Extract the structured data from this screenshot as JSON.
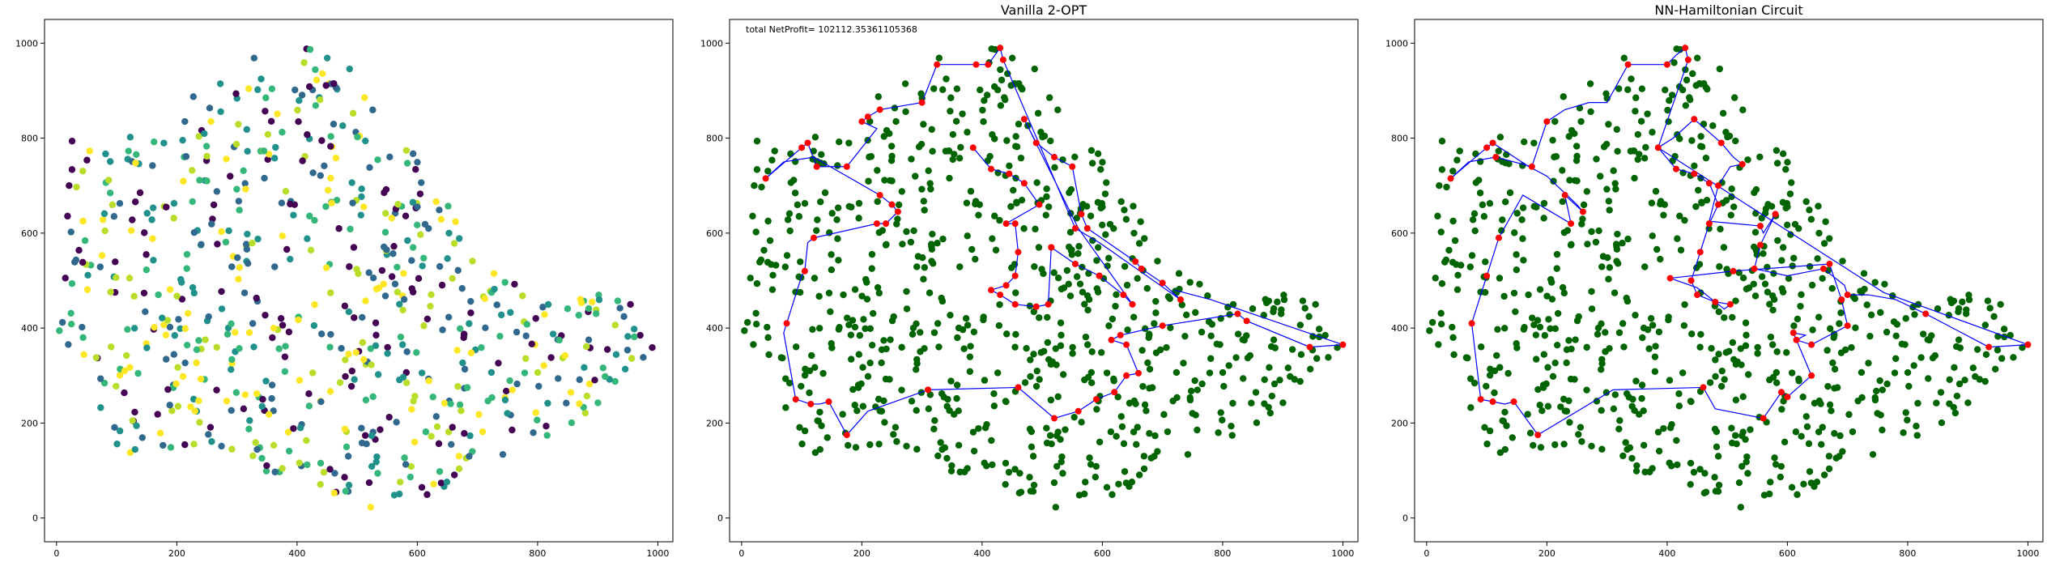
{
  "chart_data": [
    {
      "type": "scatter",
      "title": "",
      "xlim": [
        -20,
        1025
      ],
      "ylim": [
        -50,
        1050
      ],
      "xticks": [
        "0",
        "200",
        "400",
        "600",
        "800",
        "1000"
      ],
      "yticks": [
        "0",
        "200",
        "400",
        "600",
        "800",
        "1000"
      ],
      "grid": false,
      "points_note": "",
      "colormap": [
        "#440154",
        "#31688e",
        "#21918c",
        "#35b779",
        "#b8de29",
        "#fde725"
      ]
    },
    {
      "type": "scatter",
      "title": "Vanilla 2-OPT",
      "annotation": "total NetProfit= 102112.35361105368",
      "xlim": [
        -20,
        1025
      ],
      "ylim": [
        -50,
        1050
      ],
      "xticks": [
        "0",
        "200",
        "400",
        "600",
        "800",
        "1000"
      ],
      "yticks": [
        "0",
        "200",
        "400",
        "600",
        "800",
        "1000"
      ],
      "grid": false,
      "colors": {
        "points": "#006400",
        "route": "#0000ff",
        "visited": "#ff0000"
      },
      "route": [
        [
          385,
          780
        ],
        [
          415,
          735
        ],
        [
          445,
          725
        ],
        [
          470,
          705
        ],
        [
          495,
          660
        ],
        [
          440,
          620
        ],
        [
          455,
          620
        ],
        [
          460,
          560
        ],
        [
          455,
          510
        ],
        [
          440,
          490
        ],
        [
          415,
          480
        ],
        [
          430,
          470
        ],
        [
          455,
          450
        ],
        [
          490,
          445
        ],
        [
          510,
          450
        ],
        [
          515,
          570
        ],
        [
          555,
          535
        ],
        [
          595,
          510
        ],
        [
          635,
          470
        ],
        [
          650,
          450
        ],
        [
          560,
          610
        ],
        [
          470,
          840
        ],
        [
          490,
          790
        ],
        [
          520,
          760
        ],
        [
          550,
          740
        ],
        [
          565,
          640
        ],
        [
          575,
          610
        ],
        [
          655,
          540
        ],
        [
          665,
          525
        ],
        [
          700,
          495
        ],
        [
          730,
          460
        ],
        [
          595,
          580
        ],
        [
          555,
          610
        ],
        [
          435,
          965
        ],
        [
          430,
          990
        ],
        [
          410,
          955
        ],
        [
          390,
          955
        ],
        [
          325,
          955
        ],
        [
          300,
          875
        ],
        [
          230,
          860
        ],
        [
          210,
          845
        ],
        [
          200,
          835
        ],
        [
          225,
          820
        ],
        [
          175,
          740
        ],
        [
          125,
          740
        ],
        [
          110,
          790
        ],
        [
          100,
          780
        ],
        [
          40,
          715
        ],
        [
          70,
          750
        ],
        [
          120,
          760
        ],
        [
          230,
          680
        ],
        [
          250,
          660
        ],
        [
          260,
          645
        ],
        [
          240,
          620
        ],
        [
          225,
          620
        ],
        [
          120,
          590
        ],
        [
          110,
          580
        ],
        [
          105,
          520
        ],
        [
          100,
          510
        ],
        [
          75,
          410
        ],
        [
          70,
          390
        ],
        [
          90,
          250
        ],
        [
          115,
          240
        ],
        [
          130,
          240
        ],
        [
          145,
          245
        ],
        [
          175,
          175
        ],
        [
          210,
          225
        ],
        [
          310,
          270
        ],
        [
          460,
          275
        ],
        [
          520,
          210
        ],
        [
          560,
          225
        ],
        [
          590,
          250
        ],
        [
          620,
          265
        ],
        [
          640,
          300
        ],
        [
          660,
          305
        ],
        [
          640,
          365
        ],
        [
          615,
          375
        ],
        [
          630,
          385
        ],
        [
          700,
          405
        ],
        [
          825,
          430
        ],
        [
          840,
          415
        ],
        [
          945,
          360
        ],
        [
          1000,
          365
        ],
        [
          780,
          460
        ],
        [
          720,
          480
        ]
      ],
      "visited_points": [
        [
          385,
          780
        ],
        [
          415,
          735
        ],
        [
          445,
          725
        ],
        [
          470,
          705
        ],
        [
          495,
          660
        ],
        [
          440,
          620
        ],
        [
          455,
          620
        ],
        [
          460,
          560
        ],
        [
          455,
          510
        ],
        [
          440,
          490
        ],
        [
          415,
          480
        ],
        [
          430,
          470
        ],
        [
          455,
          450
        ],
        [
          490,
          445
        ],
        [
          510,
          450
        ],
        [
          515,
          570
        ],
        [
          555,
          535
        ],
        [
          595,
          510
        ],
        [
          635,
          470
        ],
        [
          650,
          450
        ],
        [
          470,
          840
        ],
        [
          490,
          790
        ],
        [
          520,
          760
        ],
        [
          550,
          740
        ],
        [
          565,
          640
        ],
        [
          575,
          610
        ],
        [
          655,
          540
        ],
        [
          665,
          525
        ],
        [
          700,
          495
        ],
        [
          730,
          460
        ],
        [
          555,
          610
        ],
        [
          435,
          965
        ],
        [
          430,
          990
        ],
        [
          410,
          955
        ],
        [
          390,
          955
        ],
        [
          325,
          955
        ],
        [
          300,
          875
        ],
        [
          230,
          860
        ],
        [
          210,
          845
        ],
        [
          200,
          835
        ],
        [
          175,
          740
        ],
        [
          125,
          740
        ],
        [
          110,
          790
        ],
        [
          100,
          780
        ],
        [
          40,
          715
        ],
        [
          230,
          680
        ],
        [
          250,
          660
        ],
        [
          260,
          645
        ],
        [
          240,
          620
        ],
        [
          225,
          620
        ],
        [
          120,
          590
        ],
        [
          105,
          520
        ],
        [
          75,
          410
        ],
        [
          90,
          250
        ],
        [
          115,
          240
        ],
        [
          145,
          245
        ],
        [
          175,
          175
        ],
        [
          310,
          270
        ],
        [
          460,
          275
        ],
        [
          520,
          210
        ],
        [
          560,
          225
        ],
        [
          590,
          250
        ],
        [
          620,
          265
        ],
        [
          640,
          300
        ],
        [
          660,
          305
        ],
        [
          640,
          365
        ],
        [
          615,
          375
        ],
        [
          630,
          385
        ],
        [
          700,
          405
        ],
        [
          825,
          430
        ],
        [
          840,
          415
        ],
        [
          945,
          360
        ],
        [
          1000,
          365
        ],
        [
          515,
          570
        ],
        [
          595,
          510
        ]
      ]
    },
    {
      "type": "scatter",
      "title": "NN-Hamiltonian Circuit",
      "xlim": [
        -20,
        1025
      ],
      "ylim": [
        -50,
        1050
      ],
      "xticks": [
        "0",
        "200",
        "400",
        "600",
        "800",
        "1000"
      ],
      "yticks": [
        "0",
        "200",
        "400",
        "600",
        "800",
        "1000"
      ],
      "grid": false,
      "colors": {
        "points": "#006400",
        "route": "#0000ff",
        "visited": "#ff0000"
      },
      "route": [
        [
          385,
          780
        ],
        [
          415,
          735
        ],
        [
          445,
          725
        ],
        [
          470,
          705
        ],
        [
          485,
          660
        ],
        [
          470,
          620
        ],
        [
          455,
          560
        ],
        [
          440,
          500
        ],
        [
          450,
          470
        ],
        [
          480,
          455
        ],
        [
          505,
          450
        ],
        [
          495,
          440
        ],
        [
          450,
          485
        ],
        [
          405,
          505
        ],
        [
          510,
          520
        ],
        [
          670,
          535
        ],
        [
          690,
          460
        ],
        [
          700,
          405
        ],
        [
          640,
          365
        ],
        [
          615,
          375
        ],
        [
          630,
          385
        ],
        [
          610,
          390
        ],
        [
          640,
          300
        ],
        [
          600,
          255
        ],
        [
          590,
          265
        ],
        [
          560,
          210
        ],
        [
          480,
          230
        ],
        [
          460,
          275
        ],
        [
          310,
          270
        ],
        [
          185,
          175
        ],
        [
          145,
          245
        ],
        [
          130,
          240
        ],
        [
          110,
          245
        ],
        [
          90,
          250
        ],
        [
          75,
          410
        ],
        [
          100,
          510
        ],
        [
          120,
          590
        ],
        [
          160,
          680
        ],
        [
          240,
          620
        ],
        [
          230,
          680
        ],
        [
          260,
          645
        ],
        [
          250,
          660
        ],
        [
          200,
          720
        ],
        [
          170,
          740
        ],
        [
          110,
          790
        ],
        [
          100,
          780
        ],
        [
          40,
          715
        ],
        [
          70,
          750
        ],
        [
          115,
          760
        ],
        [
          175,
          740
        ],
        [
          200,
          835
        ],
        [
          230,
          860
        ],
        [
          270,
          875
        ],
        [
          300,
          875
        ],
        [
          335,
          955
        ],
        [
          400,
          955
        ],
        [
          415,
          975
        ],
        [
          430,
          990
        ],
        [
          435,
          965
        ],
        [
          385,
          780
        ],
        [
          410,
          800
        ],
        [
          445,
          840
        ],
        [
          490,
          790
        ],
        [
          510,
          760
        ],
        [
          525,
          745
        ],
        [
          505,
          740
        ],
        [
          485,
          700
        ],
        [
          470,
          625
        ],
        [
          555,
          615
        ],
        [
          560,
          600
        ],
        [
          580,
          640
        ],
        [
          555,
          575
        ],
        [
          545,
          525
        ],
        [
          600,
          510
        ],
        [
          660,
          525
        ],
        [
          695,
          490
        ],
        [
          700,
          470
        ],
        [
          735,
          470
        ],
        [
          780,
          460
        ],
        [
          830,
          430
        ],
        [
          860,
          410
        ],
        [
          935,
          360
        ],
        [
          1000,
          365
        ],
        [
          760,
          475
        ],
        [
          385,
          780
        ]
      ],
      "visited_points": [
        [
          385,
          780
        ],
        [
          415,
          735
        ],
        [
          445,
          725
        ],
        [
          470,
          705
        ],
        [
          485,
          660
        ],
        [
          470,
          620
        ],
        [
          455,
          560
        ],
        [
          440,
          500
        ],
        [
          450,
          470
        ],
        [
          480,
          455
        ],
        [
          505,
          450
        ],
        [
          405,
          505
        ],
        [
          510,
          520
        ],
        [
          670,
          535
        ],
        [
          690,
          460
        ],
        [
          700,
          405
        ],
        [
          640,
          365
        ],
        [
          615,
          375
        ],
        [
          610,
          390
        ],
        [
          640,
          300
        ],
        [
          600,
          255
        ],
        [
          590,
          265
        ],
        [
          560,
          210
        ],
        [
          460,
          275
        ],
        [
          185,
          175
        ],
        [
          145,
          245
        ],
        [
          110,
          245
        ],
        [
          90,
          250
        ],
        [
          75,
          410
        ],
        [
          100,
          510
        ],
        [
          120,
          590
        ],
        [
          240,
          620
        ],
        [
          230,
          680
        ],
        [
          260,
          645
        ],
        [
          110,
          790
        ],
        [
          100,
          780
        ],
        [
          40,
          715
        ],
        [
          115,
          760
        ],
        [
          175,
          740
        ],
        [
          200,
          835
        ],
        [
          335,
          955
        ],
        [
          400,
          955
        ],
        [
          430,
          990
        ],
        [
          435,
          965
        ],
        [
          445,
          840
        ],
        [
          490,
          790
        ],
        [
          525,
          745
        ],
        [
          485,
          700
        ],
        [
          555,
          615
        ],
        [
          580,
          640
        ],
        [
          555,
          575
        ],
        [
          545,
          525
        ],
        [
          660,
          525
        ],
        [
          700,
          470
        ],
        [
          830,
          430
        ],
        [
          935,
          360
        ],
        [
          1000,
          365
        ]
      ]
    }
  ]
}
